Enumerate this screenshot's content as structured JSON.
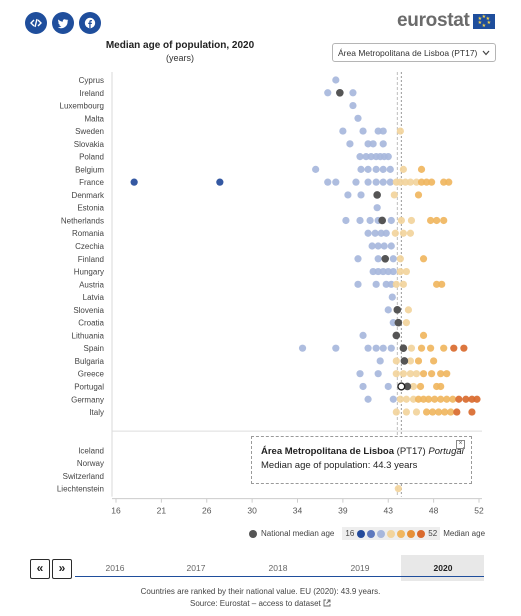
{
  "share": {
    "embed_icon": "embed-code-icon",
    "twitter_icon": "twitter-icon",
    "facebook_icon": "facebook-icon"
  },
  "logo": {
    "text": "eurostat"
  },
  "title": "Median age of population, 2020",
  "subtitle": "(years)",
  "region_select": {
    "value": "Área Metropolitana de Lisboa (PT17)"
  },
  "tooltip": {
    "name": "Área Metropolitana de Lisboa",
    "code": "(PT17)",
    "country": "Portugal",
    "line2": "Median age of population: 44.3 years"
  },
  "legend": {
    "national_label": "National median age",
    "min": "16",
    "max": "52",
    "median_label": "Median age"
  },
  "colors": {
    "low_dark": "#234a9a",
    "low": "#a7b7dc",
    "high": "#f2d49c",
    "mid_high": "#f0b660",
    "high_dark": "#d96a2e",
    "national": "#555555"
  },
  "timeline": {
    "years": [
      "2016",
      "2017",
      "2018",
      "2019",
      "2020"
    ],
    "selected": "2020",
    "prev": "«",
    "next": "»"
  },
  "footer": {
    "note": "Countries are ranked by their national value. EU (2020): 43.9 years.",
    "source": "Source: Eurostat – access to dataset"
  },
  "chart_data": {
    "type": "scatter",
    "title": "Median age of population, 2020",
    "xlim": [
      16,
      52
    ],
    "x_ticks": [
      "16",
      "21",
      "26",
      "30",
      "34",
      "39",
      "43",
      "48",
      "52"
    ],
    "eu_value": 43.9,
    "grid": false,
    "countries": [
      {
        "name": "Cyprus",
        "national": null,
        "values": [
          37.8
        ]
      },
      {
        "name": "Ireland",
        "national": 38.2,
        "values": [
          37.0,
          38.2,
          39.5
        ]
      },
      {
        "name": "Luxembourg",
        "national": null,
        "values": [
          39.5
        ]
      },
      {
        "name": "Malta",
        "national": null,
        "values": [
          40.0
        ]
      },
      {
        "name": "Sweden",
        "national": null,
        "values": [
          38.5,
          40.5,
          42.0,
          42.5,
          44.2
        ]
      },
      {
        "name": "Slovakia",
        "national": null,
        "values": [
          39.2,
          41.0,
          41.5,
          42.5
        ]
      },
      {
        "name": "Poland",
        "national": null,
        "values": [
          40.2,
          40.8,
          41.3,
          41.8,
          42.2,
          42.6,
          43.0
        ]
      },
      {
        "name": "Belgium",
        "national": null,
        "values": [
          35.8,
          40.3,
          41.0,
          41.8,
          42.5,
          43.2,
          44.5,
          46.3
        ]
      },
      {
        "name": "France",
        "national": null,
        "values": [
          17.8,
          26.3,
          37.0,
          37.8,
          39.8,
          41.0,
          41.8,
          42.5,
          43.2,
          43.8,
          44.2,
          44.7,
          45.2,
          45.8,
          46.3,
          46.8,
          47.3,
          48.5,
          49.0
        ]
      },
      {
        "name": "Denmark",
        "national": 41.9,
        "values": [
          39.0,
          40.3,
          41.9,
          43.6,
          46.0
        ]
      },
      {
        "name": "Estonia",
        "national": null,
        "values": [
          41.9
        ]
      },
      {
        "name": "Netherlands",
        "national": 42.4,
        "values": [
          38.8,
          40.2,
          41.2,
          42.0,
          42.4,
          43.3,
          44.3,
          45.3,
          47.2,
          47.8,
          48.5
        ]
      },
      {
        "name": "Romania",
        "national": null,
        "values": [
          41.0,
          41.7,
          42.3,
          42.8,
          43.7,
          44.5,
          45.2
        ]
      },
      {
        "name": "Czechia",
        "national": null,
        "values": [
          41.4,
          42.0,
          42.6,
          43.3
        ]
      },
      {
        "name": "Finland",
        "national": 42.7,
        "values": [
          40.0,
          42.0,
          42.7,
          43.5,
          44.2,
          46.5
        ]
      },
      {
        "name": "Hungary",
        "national": null,
        "values": [
          41.5,
          42.0,
          42.5,
          43.0,
          43.5,
          44.2,
          44.8
        ]
      },
      {
        "name": "Austria",
        "national": null,
        "values": [
          40.0,
          41.8,
          42.8,
          43.3,
          43.8,
          44.5,
          47.8,
          48.3
        ]
      },
      {
        "name": "Latvia",
        "national": null,
        "values": [
          43.4
        ]
      },
      {
        "name": "Slovenia",
        "national": 43.9,
        "values": [
          43.0,
          43.9,
          45.0
        ]
      },
      {
        "name": "Croatia",
        "national": 44.0,
        "values": [
          43.5,
          44.0,
          44.8
        ]
      },
      {
        "name": "Lithuania",
        "national": 43.8,
        "values": [
          40.5,
          43.8,
          46.5
        ]
      },
      {
        "name": "Spain",
        "national": 44.5,
        "values": [
          34.5,
          37.8,
          41.0,
          41.8,
          42.5,
          43.3,
          44.5,
          45.3,
          46.3,
          47.2,
          48.5,
          49.5,
          50.5
        ]
      },
      {
        "name": "Bulgaria",
        "national": 44.6,
        "values": [
          42.2,
          43.8,
          44.6,
          45.2,
          46.0,
          47.5
        ]
      },
      {
        "name": "Greece",
        "national": null,
        "values": [
          40.2,
          42.0,
          43.8,
          44.5,
          45.2,
          45.8,
          46.5,
          47.3,
          48.2,
          48.8
        ]
      },
      {
        "name": "Portugal",
        "national": 44.9,
        "values": [
          40.5,
          43.0,
          44.3,
          44.9,
          45.5,
          46.2,
          47.8,
          48.2
        ]
      },
      {
        "name": "Germany",
        "national": null,
        "values": [
          41.0,
          43.5,
          44.2,
          44.8,
          45.5,
          46.0,
          46.5,
          47.0,
          47.6,
          48.2,
          48.8,
          49.4,
          50.0,
          50.7,
          51.3,
          51.8
        ]
      },
      {
        "name": "Italy",
        "national": null,
        "values": [
          43.8,
          44.8,
          45.8,
          46.8,
          47.4,
          48.0,
          48.6,
          49.2,
          49.8,
          51.3
        ]
      },
      {
        "name": "",
        "national": null,
        "values": []
      },
      {
        "name": "",
        "national": null,
        "values": []
      },
      {
        "name": "Iceland",
        "national": null,
        "values": []
      },
      {
        "name": "Norway",
        "national": null,
        "values": []
      },
      {
        "name": "Switzerland",
        "national": null,
        "values": []
      },
      {
        "name": "Liechtenstein",
        "national": null,
        "values": [
          44.0
        ]
      }
    ],
    "highlight": {
      "name": "Portugal",
      "value": 44.3
    }
  }
}
